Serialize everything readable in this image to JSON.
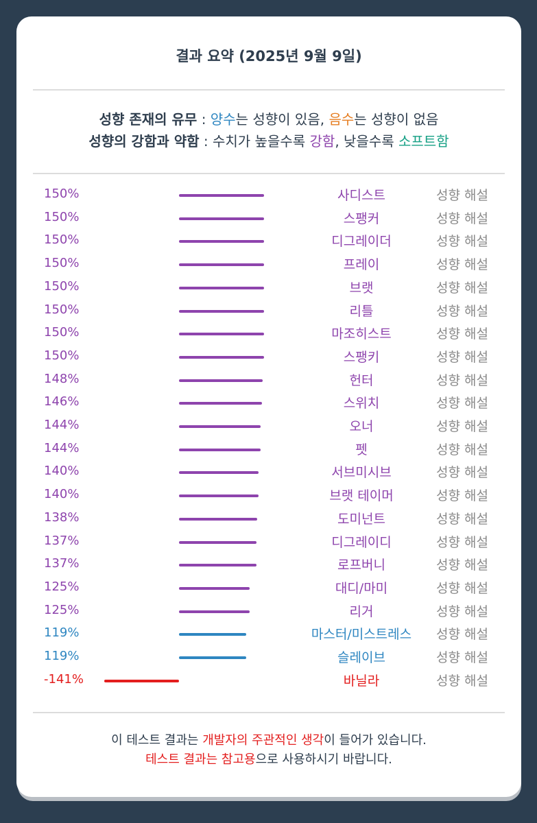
{
  "title": "결과 요약 (2025년 9월 9일)",
  "legend": {
    "line1": {
      "label": "성향 존재의 유무",
      "sep": " : ",
      "positive": "양수",
      "text1": "는 성향이 있음, ",
      "negative": "음수",
      "text2": "는 성향이 없음"
    },
    "line2": {
      "label": "성향의 강함과 약함",
      "sep": " : ",
      "text1": "수치가 높을수록 ",
      "strong": "강함",
      "text2": ", 낮을수록 ",
      "soft": "소프트함"
    }
  },
  "colors": {
    "purple": "#8e44ad",
    "blue": "#2e86c1",
    "red": "#e31e1e"
  },
  "rows": [
    {
      "pct": "150%",
      "value": 150,
      "name": "사디스트",
      "desc": "성향 해설",
      "color": "purple"
    },
    {
      "pct": "150%",
      "value": 150,
      "name": "스팽커",
      "desc": "성향 해설",
      "color": "purple"
    },
    {
      "pct": "150%",
      "value": 150,
      "name": "디그레이더",
      "desc": "성향 해설",
      "color": "purple"
    },
    {
      "pct": "150%",
      "value": 150,
      "name": "프레이",
      "desc": "성향 해설",
      "color": "purple"
    },
    {
      "pct": "150%",
      "value": 150,
      "name": "브랫",
      "desc": "성향 해설",
      "color": "purple"
    },
    {
      "pct": "150%",
      "value": 150,
      "name": "리틀",
      "desc": "성향 해설",
      "color": "purple"
    },
    {
      "pct": "150%",
      "value": 150,
      "name": "마조히스트",
      "desc": "성향 해설",
      "color": "purple"
    },
    {
      "pct": "150%",
      "value": 150,
      "name": "스팽키",
      "desc": "성향 해설",
      "color": "purple"
    },
    {
      "pct": "148%",
      "value": 148,
      "name": "헌터",
      "desc": "성향 해설",
      "color": "purple"
    },
    {
      "pct": "146%",
      "value": 146,
      "name": "스위치",
      "desc": "성향 해설",
      "color": "purple"
    },
    {
      "pct": "144%",
      "value": 144,
      "name": "오너",
      "desc": "성향 해설",
      "color": "purple"
    },
    {
      "pct": "144%",
      "value": 144,
      "name": "펫",
      "desc": "성향 해설",
      "color": "purple"
    },
    {
      "pct": "140%",
      "value": 140,
      "name": "서브미시브",
      "desc": "성향 해설",
      "color": "purple"
    },
    {
      "pct": "140%",
      "value": 140,
      "name": "브랫 테이머",
      "desc": "성향 해설",
      "color": "purple"
    },
    {
      "pct": "138%",
      "value": 138,
      "name": "도미넌트",
      "desc": "성향 해설",
      "color": "purple"
    },
    {
      "pct": "137%",
      "value": 137,
      "name": "디그레이디",
      "desc": "성향 해설",
      "color": "purple"
    },
    {
      "pct": "137%",
      "value": 137,
      "name": "로프버니",
      "desc": "성향 해설",
      "color": "purple"
    },
    {
      "pct": "125%",
      "value": 125,
      "name": "대디/마미",
      "desc": "성향 해설",
      "color": "purple"
    },
    {
      "pct": "125%",
      "value": 125,
      "name": "리거",
      "desc": "성향 해설",
      "color": "purple"
    },
    {
      "pct": "119%",
      "value": 119,
      "name": "마스터/미스트레스",
      "desc": "성향 해설",
      "color": "blue"
    },
    {
      "pct": "119%",
      "value": 119,
      "name": "슬레이브",
      "desc": "성향 해설",
      "color": "blue"
    },
    {
      "pct": "-141%",
      "value": -141,
      "name": "바닐라",
      "desc": "성향 해설",
      "color": "red"
    }
  ],
  "footer": {
    "line1_a": "이 테스트 결과는 ",
    "line1_red": "개발자의 주관적인 생각",
    "line1_b": "이 들어가 있습니다.",
    "line2_red": "테스트 결과는 참고용",
    "line2_b": "으로 사용하시기 바랍니다."
  }
}
